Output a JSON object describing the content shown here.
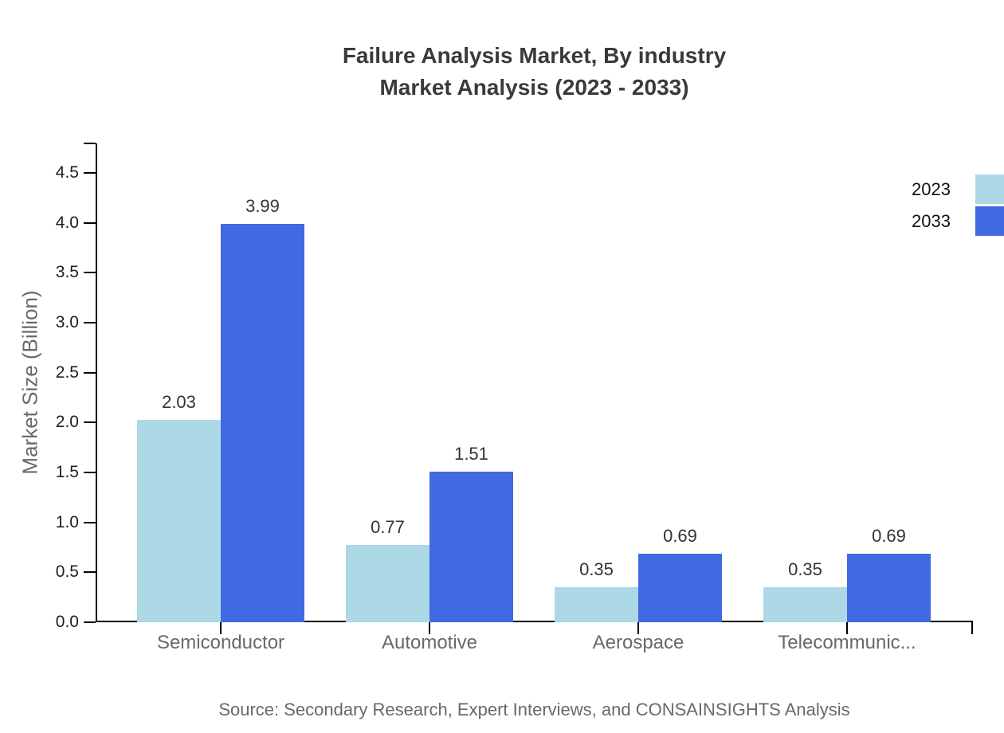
{
  "title": {
    "line1": "Failure Analysis Market, By industry",
    "line2": "Market Analysis (2023 - 2033)"
  },
  "chart_data": {
    "type": "bar",
    "title": "Failure Analysis Market, By industry Market Analysis (2023 - 2033)",
    "categories": [
      "Semiconductor",
      "Automotive",
      "Aerospace",
      "Telecommunic..."
    ],
    "series": [
      {
        "name": "2023",
        "color": "#ADD8E6",
        "values": [
          2.03,
          0.77,
          0.35,
          0.35
        ]
      },
      {
        "name": "2033",
        "color": "#4169E1",
        "values": [
          3.99,
          1.51,
          0.69,
          0.69
        ]
      }
    ],
    "xlabel": "",
    "ylabel": "Market Size (Billion)",
    "ylim": [
      0,
      4.75
    ],
    "yticks": [
      0.0,
      0.5,
      1.0,
      1.5,
      2.0,
      2.5,
      3.0,
      3.5,
      4.0,
      4.5
    ],
    "ytick_format": "one-decimal",
    "value_label_format": "two-decimals",
    "grid": false,
    "legend_position": "top-right",
    "value_labels": true,
    "axis_color": "#000000",
    "text_colors": {
      "title": "#3a3a3a",
      "tick_labels": "#1f1f1f",
      "category_labels": "#696969",
      "value_labels": "#333333",
      "legend_labels": "#111111",
      "source": "#696969"
    }
  },
  "source": "Source: Secondary Research, Expert Interviews, and CONSAINSIGHTS Analysis"
}
